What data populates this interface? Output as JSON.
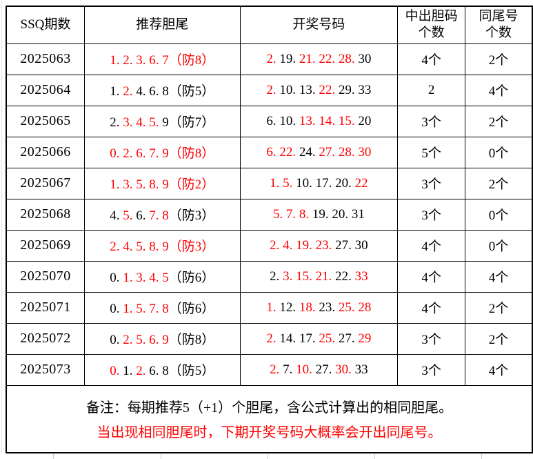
{
  "colors": {
    "highlight": "#ff0000",
    "text": "#000000",
    "border": "#000000",
    "grid": "#c9c9c9"
  },
  "table": {
    "columns": [
      "SSQ期数",
      "推荐胆尾",
      "开奖号码",
      "中出胆码\n个数",
      "同尾号\n个数"
    ],
    "rows": [
      {
        "period": "2025063",
        "rec": [
          {
            "t": "1. 2. 3. 6. 7（防8）",
            "c": "red"
          }
        ],
        "win": [
          {
            "t": "2. ",
            "c": "red"
          },
          {
            "t": "19. ",
            "c": "black"
          },
          {
            "t": "21. 22. 28. ",
            "c": "red"
          },
          {
            "t": "30",
            "c": "black"
          }
        ],
        "hit": "4个",
        "same": "2个"
      },
      {
        "period": "2025064",
        "rec": [
          {
            "t": "1. ",
            "c": "black"
          },
          {
            "t": "2. ",
            "c": "red"
          },
          {
            "t": "4. 6. 8（防5）",
            "c": "black"
          }
        ],
        "win": [
          {
            "t": "2. ",
            "c": "red"
          },
          {
            "t": "10. 13. ",
            "c": "black"
          },
          {
            "t": "22. ",
            "c": "red"
          },
          {
            "t": "29. 33",
            "c": "black"
          }
        ],
        "hit": "2",
        "same": "4个"
      },
      {
        "period": "2025065",
        "rec": [
          {
            "t": "2. ",
            "c": "black"
          },
          {
            "t": "3. 4. 5. ",
            "c": "red"
          },
          {
            "t": "9（防7）",
            "c": "black"
          }
        ],
        "win": [
          {
            "t": "6. 10. ",
            "c": "black"
          },
          {
            "t": "13. 14. 15. ",
            "c": "red"
          },
          {
            "t": "20",
            "c": "black"
          }
        ],
        "hit": "3个",
        "same": "2个"
      },
      {
        "period": "2025066",
        "rec": [
          {
            "t": "0. 2. 6. 7. 9（防8）",
            "c": "red"
          }
        ],
        "win": [
          {
            "t": "6. 22. ",
            "c": "red"
          },
          {
            "t": "24. ",
            "c": "black"
          },
          {
            "t": "27. 28. 30",
            "c": "red"
          }
        ],
        "hit": "5个",
        "same": "0个"
      },
      {
        "period": "2025067",
        "rec": [
          {
            "t": "1. 3. 5. 8. 9（防2）",
            "c": "red"
          }
        ],
        "win": [
          {
            "t": "1. 5. ",
            "c": "red"
          },
          {
            "t": "10. 17. 20. ",
            "c": "black"
          },
          {
            "t": "22",
            "c": "red"
          }
        ],
        "hit": "3个",
        "same": "2个"
      },
      {
        "period": "2025068",
        "rec": [
          {
            "t": "4. ",
            "c": "black"
          },
          {
            "t": "5. ",
            "c": "red"
          },
          {
            "t": "6. ",
            "c": "black"
          },
          {
            "t": "7. 8",
            "c": "red"
          },
          {
            "t": "（防3）",
            "c": "black"
          }
        ],
        "win": [
          {
            "t": "5. 7. 8. ",
            "c": "red"
          },
          {
            "t": "19. 20. 31",
            "c": "black"
          }
        ],
        "hit": "3个",
        "same": "0个"
      },
      {
        "period": "2025069",
        "rec": [
          {
            "t": "2. 4. 5. 8. 9（防3）",
            "c": "red"
          }
        ],
        "win": [
          {
            "t": "2. 4. 19. 23. ",
            "c": "red"
          },
          {
            "t": "27. 30",
            "c": "black"
          }
        ],
        "hit": "4个",
        "same": "0个"
      },
      {
        "period": "2025070",
        "rec": [
          {
            "t": "0. ",
            "c": "black"
          },
          {
            "t": "1. 3. 4. 5",
            "c": "red"
          },
          {
            "t": "（防6）",
            "c": "black"
          }
        ],
        "win": [
          {
            "t": "2. ",
            "c": "black"
          },
          {
            "t": "3. 15. 21. ",
            "c": "red"
          },
          {
            "t": "22. ",
            "c": "black"
          },
          {
            "t": "33",
            "c": "red"
          }
        ],
        "hit": "4个",
        "same": "4个"
      },
      {
        "period": "2025071",
        "rec": [
          {
            "t": "0. ",
            "c": "black"
          },
          {
            "t": "1. 5. 7. 8",
            "c": "red"
          },
          {
            "t": "（防6）",
            "c": "black"
          }
        ],
        "win": [
          {
            "t": "1. ",
            "c": "red"
          },
          {
            "t": "12. ",
            "c": "black"
          },
          {
            "t": "18. ",
            "c": "red"
          },
          {
            "t": "23. ",
            "c": "black"
          },
          {
            "t": "25. 28",
            "c": "red"
          }
        ],
        "hit": "4个",
        "same": "2个"
      },
      {
        "period": "2025072",
        "rec": [
          {
            "t": "0. ",
            "c": "black"
          },
          {
            "t": "2. 5. 6. 9",
            "c": "red"
          },
          {
            "t": "（防8）",
            "c": "black"
          }
        ],
        "win": [
          {
            "t": "2. ",
            "c": "red"
          },
          {
            "t": "14. 17. ",
            "c": "black"
          },
          {
            "t": "25. ",
            "c": "red"
          },
          {
            "t": "27. ",
            "c": "black"
          },
          {
            "t": "29",
            "c": "red"
          }
        ],
        "hit": "3个",
        "same": "2个"
      },
      {
        "period": "2025073",
        "rec": [
          {
            "t": "0. ",
            "c": "red"
          },
          {
            "t": "1. ",
            "c": "black"
          },
          {
            "t": "2. ",
            "c": "red"
          },
          {
            "t": "6. 8（防5）",
            "c": "black"
          }
        ],
        "win": [
          {
            "t": "2. ",
            "c": "red"
          },
          {
            "t": "7. ",
            "c": "black"
          },
          {
            "t": "10. ",
            "c": "red"
          },
          {
            "t": "27. ",
            "c": "black"
          },
          {
            "t": "30. ",
            "c": "red"
          },
          {
            "t": "33",
            "c": "black"
          }
        ],
        "hit": "3个",
        "same": "4个"
      }
    ]
  },
  "note": {
    "line1": "备注：每期推荐5（+1）个胆尾，含公式计算出的相同胆尾。",
    "line2": "当出现相同胆尾时，下期开奖号码大概率会开出同尾号。"
  }
}
